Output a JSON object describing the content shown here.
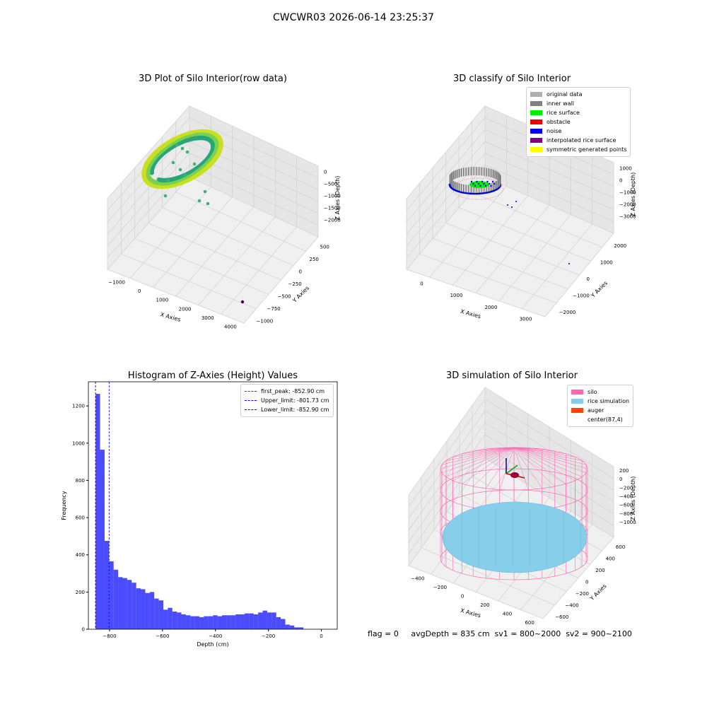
{
  "suptitle": "CWCWR03 2026-06-14 23:25:37",
  "footer_text": "flag = 0     avgDepth = 835 cm  sv1 = 800~2000  sv2 = 900~2100",
  "colors": {
    "histogram": "#0000ff",
    "first_peak": "#ff0000",
    "limit": "#0000ff",
    "silo": "#ff69b4",
    "rice": "#87ceeb",
    "auger": "#ff4500"
  },
  "chart_data": [
    {
      "type": "scatter",
      "title": "3D Plot of Silo Interior(row data)",
      "xlabel": "X Axies",
      "ylabel": "Y Axies",
      "zlabel": "Z Axies (Depth)",
      "xticks": [
        "−1000",
        "0",
        "1000",
        "2000",
        "3000",
        "4000"
      ],
      "yticks": [
        "−1000",
        "−750",
        "−500",
        "−250",
        "0",
        "250",
        "500"
      ],
      "zticks": [
        "0",
        "−500",
        "−1000",
        "−1500",
        "−2000"
      ],
      "colormap": "viridis"
    },
    {
      "type": "scatter",
      "title": "3D classify of Silo Interior",
      "xlabel": "X Axies",
      "ylabel": "Y Axies",
      "zlabel": "Z Axies (Depth)",
      "xticks": [
        "0",
        "1000",
        "2000",
        "3000"
      ],
      "yticks": [
        "−2000",
        "−1000",
        "0",
        "1000",
        "2000"
      ],
      "zticks": [
        "1000",
        "0",
        "−1000",
        "−2000",
        "−3000"
      ],
      "legend": [
        {
          "label": "original data",
          "color": "#b0b0b0"
        },
        {
          "label": "inner wall",
          "color": "#808080"
        },
        {
          "label": "rice surface",
          "color": "#00ee00"
        },
        {
          "label": "obstacle",
          "color": "#ee0000"
        },
        {
          "label": "noise",
          "color": "#0000ee"
        },
        {
          "label": "interpolated rice surface",
          "color": "#800080"
        },
        {
          "label": "symmetric generated points",
          "color": "#ffff00"
        }
      ]
    },
    {
      "type": "bar",
      "title": "Histogram of Z-Axies (Height) Values",
      "xlabel": "Depth (cm)",
      "ylabel": "Frequency",
      "xlim": [
        -880,
        60
      ],
      "ylim": [
        0,
        1330
      ],
      "xticks": [
        -800,
        -600,
        -400,
        -200,
        0
      ],
      "xtick_labels": [
        "−800",
        "−600",
        "−400",
        "−200",
        "0"
      ],
      "yticks": [
        0,
        200,
        400,
        600,
        800,
        1000,
        1200
      ],
      "bin_start": -852.9,
      "bin_width": 17.06,
      "values": [
        1265,
        965,
        475,
        365,
        320,
        280,
        275,
        265,
        250,
        220,
        215,
        195,
        200,
        165,
        155,
        105,
        115,
        95,
        90,
        80,
        75,
        70,
        70,
        65,
        70,
        70,
        75,
        70,
        75,
        75,
        75,
        80,
        80,
        85,
        85,
        80,
        90,
        100,
        90,
        90,
        65,
        55,
        25,
        20,
        10,
        10
      ],
      "lines": [
        {
          "label": "first_peak: -852.90 cm",
          "x": -852.9,
          "color": "#ff0000"
        },
        {
          "label": "Upper_limit: -801.73 cm",
          "x": -801.73,
          "color": "#0000ff"
        },
        {
          "label": "Lower_limit: -852.90 cm",
          "x": -852.9,
          "color": "#0000ff"
        }
      ]
    },
    {
      "type": "scatter",
      "title": "3D simulation of Silo Interior",
      "xlabel": "X Axies",
      "ylabel": "Y Axies",
      "zlabel": "Z Axies (Depth)",
      "xticks": [
        "−400",
        "−200",
        "0",
        "200",
        "400",
        "600"
      ],
      "yticks": [
        "−600",
        "−400",
        "−200",
        "0",
        "200",
        "400",
        "600"
      ],
      "zticks": [
        "200",
        "0",
        "−200",
        "−400",
        "−600",
        "−800",
        "−1000"
      ],
      "legend": [
        {
          "label": "silo",
          "color": "#ff69b4"
        },
        {
          "label": "rice simulation",
          "color": "#87ceeb"
        },
        {
          "label": "auger",
          "color": "#ff4500"
        },
        {
          "label": "center(87,4)",
          "color": ""
        }
      ]
    }
  ]
}
